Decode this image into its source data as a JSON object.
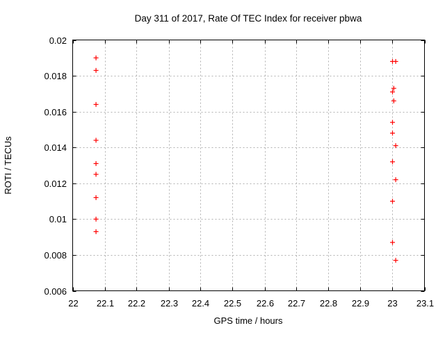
{
  "chart_data": {
    "type": "scatter",
    "title": "Day 311 of 2017, Rate Of TEC Index for receiver pbwa",
    "xlabel": "GPS time / hours",
    "ylabel": "ROTI / TECUs",
    "xlim": [
      22,
      23.1
    ],
    "ylim": [
      0.006,
      0.02
    ],
    "xticks": [
      22,
      22.1,
      22.2,
      22.3,
      22.4,
      22.5,
      22.6,
      22.7,
      22.8,
      22.9,
      23,
      23.1
    ],
    "xtick_labels": [
      "22",
      "22.1",
      "22.2",
      "22.3",
      "22.4",
      "22.5",
      "22.6",
      "22.7",
      "22.8",
      "22.9",
      "23",
      "23.1"
    ],
    "yticks": [
      0.006,
      0.008,
      0.01,
      0.012,
      0.014,
      0.016,
      0.018,
      0.02
    ],
    "ytick_labels": [
      "0.006",
      "0.008",
      "0.01",
      "0.012",
      "0.014",
      "0.016",
      "0.018",
      "0.02"
    ],
    "grid": true,
    "legend": "none",
    "marker": {
      "shape": "plus",
      "color": "#ff0000",
      "size": 7
    },
    "colors": {
      "border": "#000000",
      "grid": "#b0b0b0",
      "text": "#000000",
      "background": "#ffffff"
    },
    "series": [
      {
        "name": "ROTI",
        "points": [
          [
            22.073,
            0.019
          ],
          [
            22.073,
            0.0183
          ],
          [
            22.073,
            0.0164
          ],
          [
            22.073,
            0.0144
          ],
          [
            22.073,
            0.0131
          ],
          [
            22.073,
            0.0125
          ],
          [
            22.073,
            0.0112
          ],
          [
            22.073,
            0.01
          ],
          [
            22.073,
            0.0093
          ],
          [
            23.0,
            0.0188
          ],
          [
            23.01,
            0.0188
          ],
          [
            23.004,
            0.0173
          ],
          [
            23.0,
            0.0171
          ],
          [
            23.004,
            0.0166
          ],
          [
            23.0,
            0.0154
          ],
          [
            23.0,
            0.0148
          ],
          [
            23.01,
            0.0141
          ],
          [
            23.0,
            0.0132
          ],
          [
            23.01,
            0.0122
          ],
          [
            23.0,
            0.011
          ],
          [
            23.0,
            0.0087
          ],
          [
            23.01,
            0.0077
          ]
        ]
      }
    ]
  }
}
